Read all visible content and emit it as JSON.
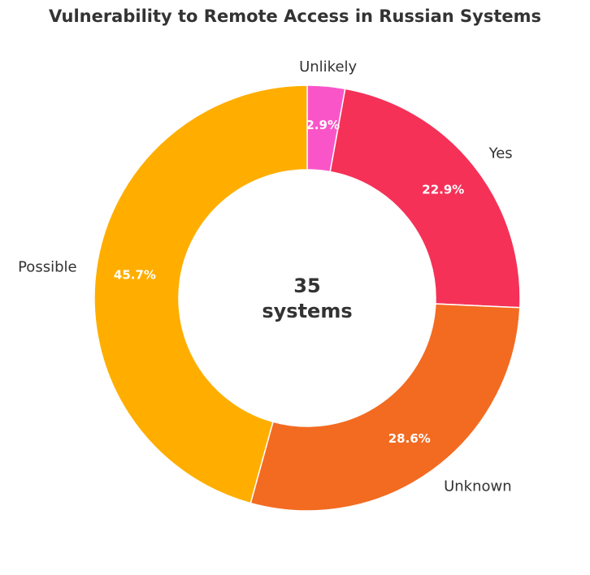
{
  "chart_data": {
    "type": "pie",
    "title": "Vulnerability to Remote Access in Russian Systems",
    "center_label": [
      "35",
      "systems"
    ],
    "slices": [
      {
        "label": "Unlikely",
        "value": 1,
        "percent_label": "2.9%",
        "color": "#fa55c8"
      },
      {
        "label": "Yes",
        "value": 8,
        "percent_label": "22.9%",
        "color": "#f53158"
      },
      {
        "label": "Unknown",
        "value": 10,
        "percent_label": "28.6%",
        "color": "#f26b21"
      },
      {
        "label": "Possible",
        "value": 16,
        "percent_label": "45.7%",
        "color": "#ffae00"
      }
    ],
    "start": "12 o'clock",
    "direction": "clockwise"
  }
}
